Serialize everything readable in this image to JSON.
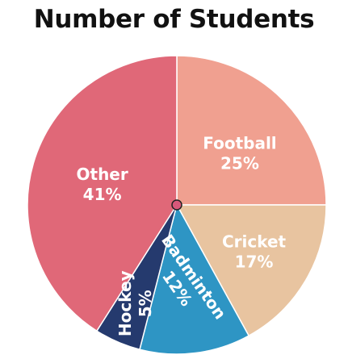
{
  "chart_data": {
    "type": "pie",
    "title": "Number of Students",
    "slices": [
      {
        "label": "Football",
        "value": 25,
        "display": "25%",
        "color": "#f0a090"
      },
      {
        "label": "Cricket",
        "value": 17,
        "display": "17%",
        "color": "#e8c4a0"
      },
      {
        "label": "Badminton",
        "value": 12,
        "display": "12%",
        "color": "#2e95c4"
      },
      {
        "label": "Hockey",
        "value": 5,
        "display": "5%",
        "color": "#253a6e"
      },
      {
        "label": "Other",
        "value": 41,
        "display": "41%",
        "color": "#e06878"
      }
    ],
    "center_marker_color": "#d8587a"
  }
}
